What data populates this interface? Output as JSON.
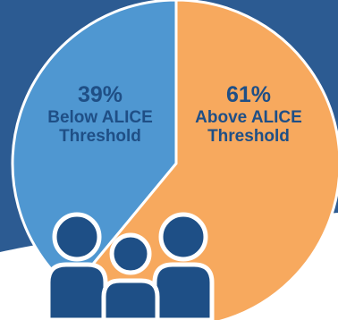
{
  "chart_data": {
    "type": "pie",
    "title": "",
    "slices": [
      {
        "label": "Below ALICE Threshold",
        "value": 39,
        "value_label": "39%",
        "text": "Below ALICE Threshold",
        "color": "#4f97d1"
      },
      {
        "label": "Above ALICE Threshold",
        "value": 61,
        "value_label": "61%",
        "text": "Above ALICE Threshold",
        "color": "#f7a95e"
      }
    ],
    "legend": "none"
  },
  "colors": {
    "background_band": "#2c5b92",
    "slice_border": "#ffffff",
    "icon_fill": "#1e4f86",
    "icon_outline": "#ffffff"
  },
  "icons": {
    "people": "family-people-icon"
  }
}
